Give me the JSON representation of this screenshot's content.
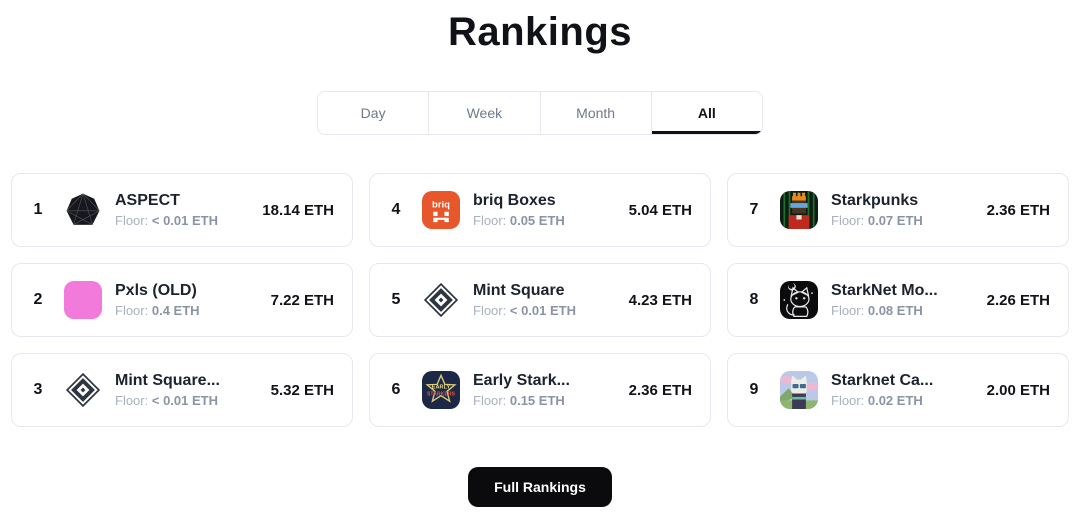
{
  "page": {
    "title": "Rankings",
    "full_rankings_label": "Full Rankings"
  },
  "tabs": [
    {
      "label": "Day",
      "active": false
    },
    {
      "label": "Week",
      "active": false
    },
    {
      "label": "Month",
      "active": false
    },
    {
      "label": "All",
      "active": true
    }
  ],
  "floor_label": "Floor:",
  "rankings": [
    {
      "rank": "1",
      "name": "ASPECT",
      "floor": "< 0.01 ETH",
      "volume": "18.14 ETH",
      "icon": "aspect-icon"
    },
    {
      "rank": "2",
      "name": "Pxls (OLD)",
      "floor": "0.4 ETH",
      "volume": "7.22 ETH",
      "icon": "pxls-icon"
    },
    {
      "rank": "3",
      "name": "Mint Square...",
      "floor": "< 0.01 ETH",
      "volume": "5.32 ETH",
      "icon": "mint-square-icon"
    },
    {
      "rank": "4",
      "name": "briq Boxes",
      "floor": "0.05 ETH",
      "volume": "5.04 ETH",
      "icon": "briq-icon"
    },
    {
      "rank": "5",
      "name": "Mint Square",
      "floor": "< 0.01 ETH",
      "volume": "4.23 ETH",
      "icon": "mint-square-icon"
    },
    {
      "rank": "6",
      "name": "Early Stark...",
      "floor": "0.15 ETH",
      "volume": "2.36 ETH",
      "icon": "early-starkers-icon"
    },
    {
      "rank": "7",
      "name": "Starkpunks",
      "floor": "0.07 ETH",
      "volume": "2.36 ETH",
      "icon": "starkpunks-icon"
    },
    {
      "rank": "8",
      "name": "StarkNet Mo...",
      "floor": "0.08 ETH",
      "volume": "2.26 ETH",
      "icon": "starknet-mo-icon"
    },
    {
      "rank": "9",
      "name": "Starknet Ca...",
      "floor": "0.02 ETH",
      "volume": "2.00 ETH",
      "icon": "starknet-ca-icon"
    }
  ],
  "colors": {
    "accent_pink": "#F17ADB",
    "accent_orange": "#E8562B",
    "text_dark": "#101218",
    "floor_label_grey": "#A8B1BF",
    "floor_value_grey": "#8A94A4",
    "card_border": "#E5E8EE",
    "button_bg": "#0B0B0D"
  }
}
